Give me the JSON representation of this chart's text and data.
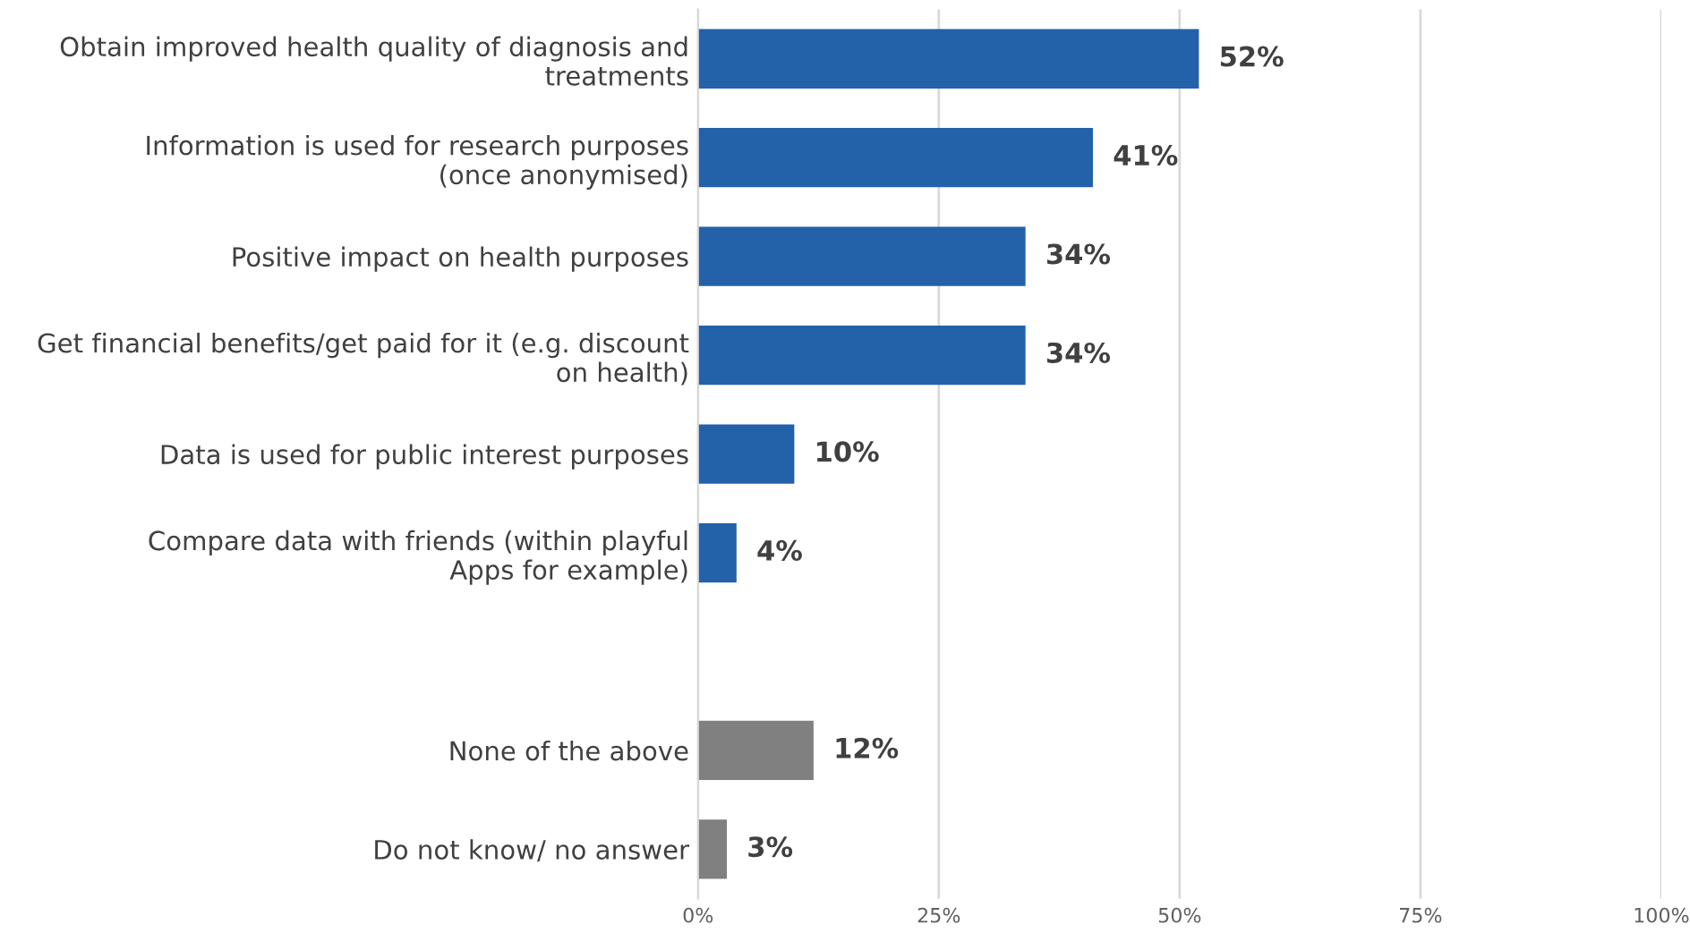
{
  "chart_data": {
    "type": "bar",
    "orientation": "horizontal",
    "categories": [
      "Obtain improved health quality of diagnosis and\ntreatments",
      "Information is used for research purposes\n(once anonymised)",
      "Positive impact on health purposes",
      "Get financial benefits/get paid for it (e.g. discount\non health)",
      "Data is used for public interest purposes",
      "Compare data with friends (within playful\nApps for example)",
      null,
      "None of the above",
      "Do not know/ no answer"
    ],
    "values": [
      52,
      41,
      34,
      34,
      10,
      4,
      null,
      12,
      3
    ],
    "colors": [
      "#2361a9",
      "#2361a9",
      "#2361a9",
      "#2361a9",
      "#2361a9",
      "#2361a9",
      "#2361a9",
      "#808080",
      "#808080"
    ],
    "value_labels": [
      "52%",
      "41%",
      "34%",
      "34%",
      "10%",
      "4%",
      null,
      "12%",
      "3%"
    ],
    "xlim": [
      0,
      100
    ],
    "xticks": [
      {
        "value": 0,
        "label": "0%"
      },
      {
        "value": 25,
        "label": "25%"
      },
      {
        "value": 50,
        "label": "50%"
      },
      {
        "value": 75,
        "label": "75%"
      },
      {
        "value": 100,
        "label": "100%"
      }
    ],
    "grid": "x"
  }
}
